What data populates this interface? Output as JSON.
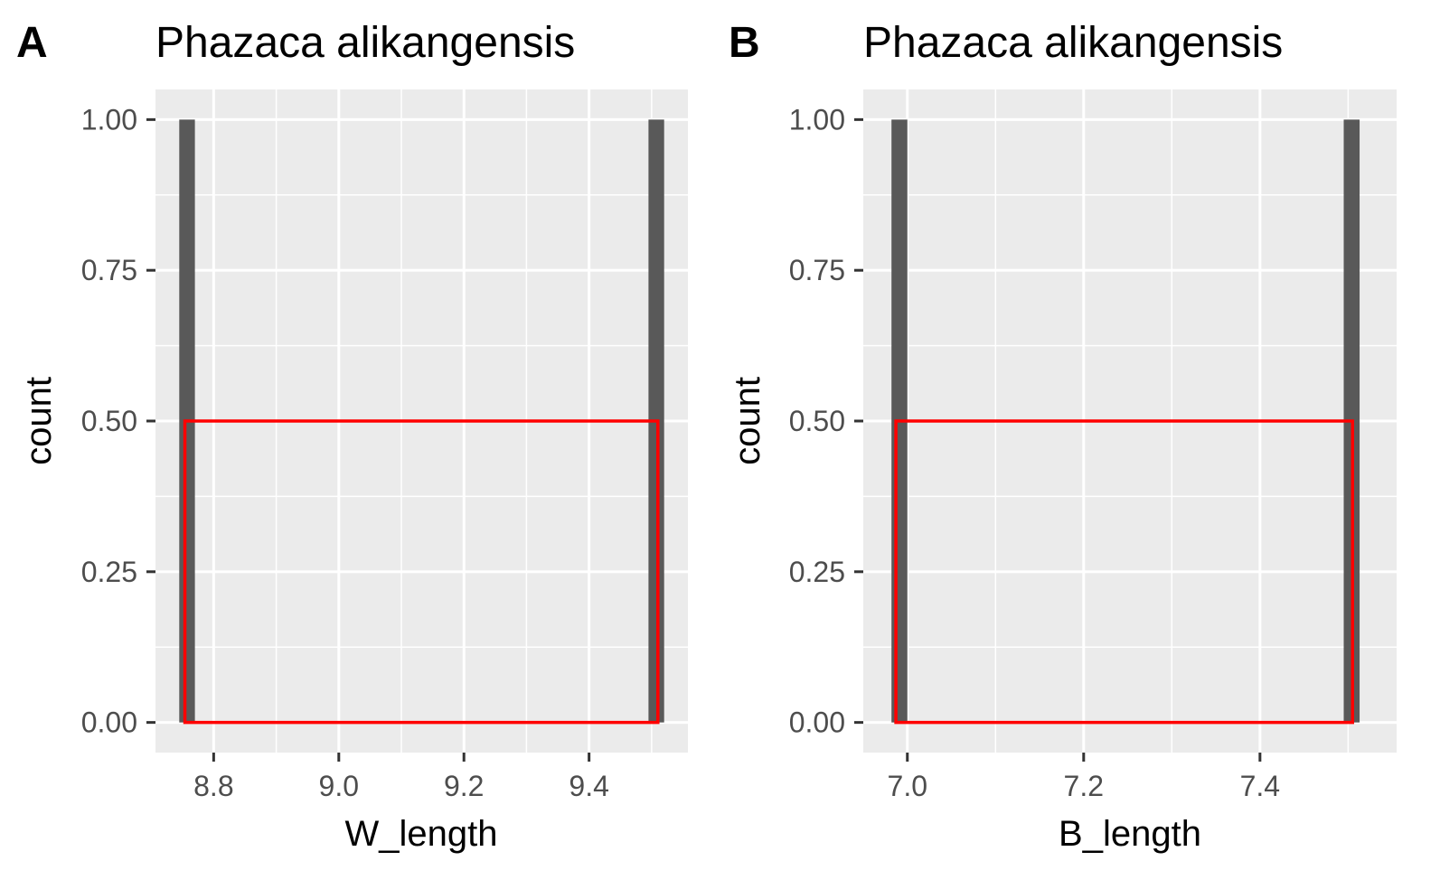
{
  "chart_data": [
    {
      "type": "bar",
      "panel_tag": "A",
      "title": "Phazaca alikangensis",
      "xlabel": "W_length",
      "ylabel": "count",
      "xlim": [
        8.707,
        9.558
      ],
      "ylim": [
        -0.05,
        1.05
      ],
      "x_ticks": [
        8.8,
        9.0,
        9.2,
        9.4
      ],
      "x_tick_labels": [
        "8.8",
        "9.0",
        "9.2",
        "9.4"
      ],
      "y_ticks": [
        0.0,
        0.25,
        0.5,
        0.75,
        1.0
      ],
      "y_tick_labels": [
        "0.00",
        "0.25",
        "0.50",
        "0.75",
        "1.00"
      ],
      "grid": true,
      "bars": [
        {
          "x_start": 8.745,
          "x_end": 8.77,
          "count": 1
        },
        {
          "x_start": 9.495,
          "x_end": 9.52,
          "count": 1
        }
      ],
      "bar_color": "#595959",
      "highlight_box": {
        "x_start": 8.754,
        "x_end": 9.51,
        "y_start": 0.0,
        "y_end": 0.5,
        "color": "#ff0000"
      }
    },
    {
      "type": "bar",
      "panel_tag": "B",
      "title": "Phazaca alikangensis",
      "xlabel": "B_length",
      "ylabel": "count",
      "xlim": [
        6.95,
        7.555
      ],
      "ylim": [
        -0.05,
        1.05
      ],
      "x_ticks": [
        7.0,
        7.2,
        7.4
      ],
      "x_tick_labels": [
        "7.0",
        "7.2",
        "7.4"
      ],
      "y_ticks": [
        0.0,
        0.25,
        0.5,
        0.75,
        1.0
      ],
      "y_tick_labels": [
        "0.00",
        "0.25",
        "0.50",
        "0.75",
        "1.00"
      ],
      "grid": true,
      "bars": [
        {
          "x_start": 6.982,
          "x_end": 7.0,
          "count": 1
        },
        {
          "x_start": 7.495,
          "x_end": 7.513,
          "count": 1
        }
      ],
      "bar_color": "#595959",
      "highlight_box": {
        "x_start": 6.987,
        "x_end": 7.505,
        "y_start": 0.0,
        "y_end": 0.5,
        "color": "#ff0000"
      }
    }
  ]
}
